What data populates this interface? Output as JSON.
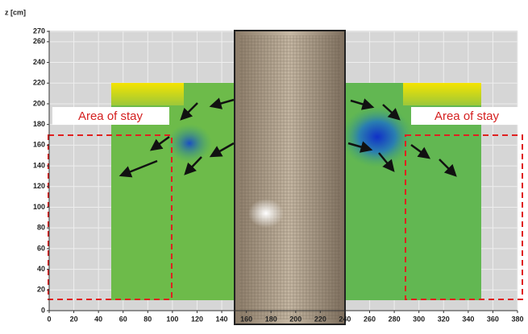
{
  "chart_data": {
    "type": "heatmap",
    "y_label": "z [cm]",
    "xlim": [
      0,
      380
    ],
    "xticks": [
      0,
      20,
      40,
      60,
      80,
      100,
      120,
      140,
      160,
      180,
      200,
      220,
      240,
      260,
      280,
      300,
      320,
      340,
      360,
      380
    ],
    "ylim": [
      0,
      270
    ],
    "yticks": [
      0,
      20,
      40,
      60,
      80,
      100,
      120,
      140,
      160,
      180,
      200,
      220,
      240,
      260,
      270
    ],
    "grid": true,
    "annotations": [
      "Area of stay",
      "Area of stay"
    ]
  }
}
